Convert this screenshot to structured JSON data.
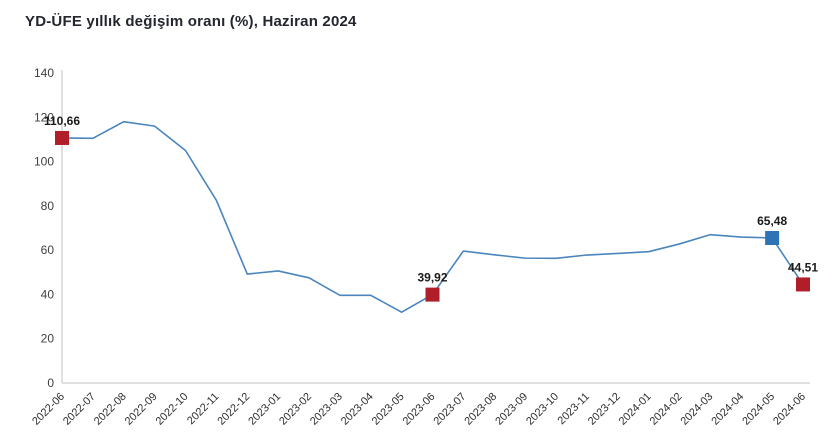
{
  "title": "YD-ÜFE yıllık değişim oranı (%), Haziran 2024",
  "chart_data": {
    "type": "line",
    "x": [
      "2022-06",
      "2022-07",
      "2022-08",
      "2022-09",
      "2022-10",
      "2022-11",
      "2022-12",
      "2023-01",
      "2023-02",
      "2023-03",
      "2023-04",
      "2023-05",
      "2023-06",
      "2023-07",
      "2023-08",
      "2023-09",
      "2023-10",
      "2023-11",
      "2023-12",
      "2024-01",
      "2024-02",
      "2024-03",
      "2024-04",
      "2024-05",
      "2024-06"
    ],
    "series": [
      {
        "name": "YD-ÜFE yıllık değişim oranı (%)",
        "values": [
          110.66,
          110.5,
          118.0,
          116.0,
          105.0,
          82.5,
          49.2,
          50.6,
          47.5,
          39.6,
          39.6,
          32.0,
          39.92,
          59.6,
          57.9,
          56.4,
          56.3,
          57.8,
          58.5,
          59.3,
          62.8,
          67.0,
          65.9,
          65.48,
          44.51
        ]
      }
    ],
    "ylim": [
      0,
      140
    ],
    "yticks": [
      0,
      20,
      40,
      60,
      80,
      100,
      120,
      140
    ],
    "grid": false,
    "legend": "none",
    "line_color": "#4a85bd",
    "axis_color": "#d6d6d6",
    "annotations": [
      {
        "x": "2022-06",
        "index": 0,
        "label": "110,66",
        "marker": "square",
        "color": "#b01e2a"
      },
      {
        "x": "2023-06",
        "index": 12,
        "label": "39,92",
        "marker": "square",
        "color": "#b01e2a"
      },
      {
        "x": "2024-05",
        "index": 23,
        "label": "65,48",
        "marker": "square",
        "color": "#2e74b5"
      },
      {
        "x": "2024-06",
        "index": 24,
        "label": "44,51",
        "marker": "square",
        "color": "#b01e2a"
      }
    ]
  }
}
